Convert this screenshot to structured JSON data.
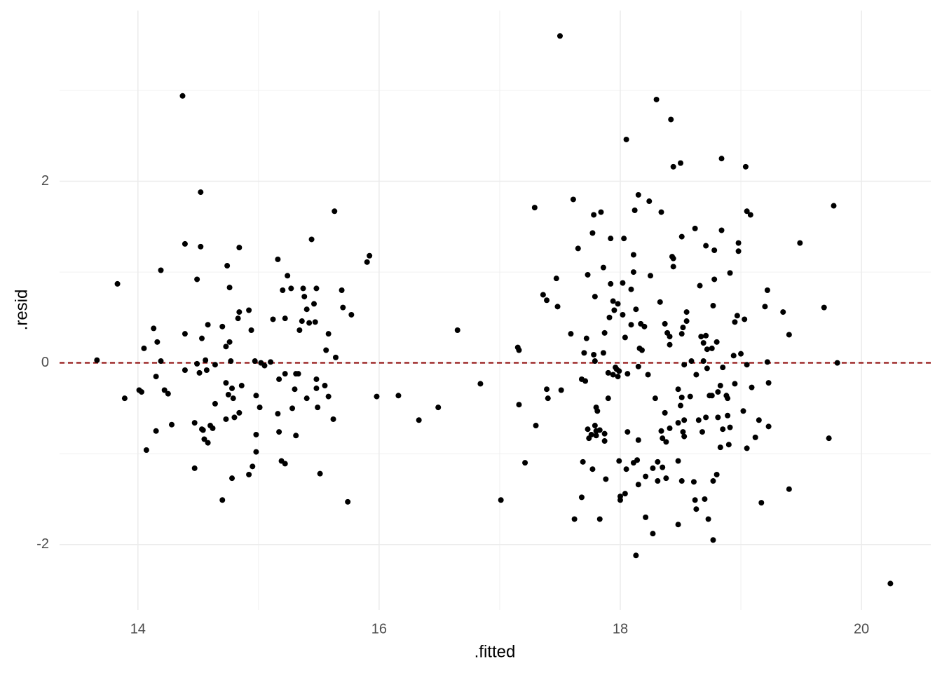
{
  "chart_data": {
    "type": "scatter",
    "x_label": ".fitted",
    "y_label": ".resid",
    "xlim": [
      13.35,
      20.575
    ],
    "ylim": [
      -2.72,
      3.88
    ],
    "xticks": [
      14,
      16,
      18,
      20
    ],
    "yticks": [
      -2,
      0,
      2
    ],
    "grid": true,
    "minor_grid": true,
    "hline": {
      "value": 0,
      "color": "#8b0000",
      "dash": true
    },
    "series": [
      {
        "color": "#000000",
        "x": [
          13.66,
          13.83,
          13.89,
          14.01,
          14.03,
          14.05,
          14.07,
          14.13,
          14.15,
          14.15,
          14.16,
          14.19,
          14.19,
          14.22,
          14.25,
          14.28,
          14.37,
          14.39,
          14.39,
          14.39,
          14.47,
          14.47,
          14.49,
          14.49,
          14.51,
          14.52,
          14.52,
          14.53,
          14.53,
          14.54,
          14.55,
          14.56,
          14.57,
          14.58,
          14.58,
          14.6,
          14.62,
          14.64,
          14.64,
          14.7,
          14.7,
          14.73,
          14.73,
          14.73,
          14.74,
          14.75,
          14.76,
          14.76,
          14.77,
          14.78,
          14.78,
          14.79,
          14.8,
          14.83,
          14.84,
          14.84,
          14.84,
          14.86,
          14.92,
          14.92,
          14.94,
          14.95,
          14.97,
          14.98,
          14.98,
          14.98,
          15.01,
          15.02,
          15.05,
          15.1,
          15.12,
          15.16,
          15.16,
          15.17,
          15.17,
          15.19,
          15.2,
          15.22,
          15.22,
          15.22,
          15.24,
          15.27,
          15.28,
          15.3,
          15.31,
          15.31,
          15.33,
          15.34,
          15.36,
          15.37,
          15.38,
          15.4,
          15.4,
          15.42,
          15.44,
          15.46,
          15.47,
          15.48,
          15.48,
          15.48,
          15.49,
          15.51,
          15.55,
          15.56,
          15.58,
          15.58,
          15.62,
          15.63,
          15.64,
          15.69,
          15.7,
          15.74,
          15.77,
          15.9,
          15.92,
          15.98,
          16.16,
          16.33,
          16.49,
          16.65,
          16.84,
          17.01,
          17.15,
          17.16,
          17.16,
          17.21,
          17.29,
          17.3,
          17.36,
          17.39,
          17.39,
          17.4,
          17.47,
          17.48,
          17.5,
          17.51,
          17.59,
          17.61,
          17.62,
          17.65,
          17.68,
          17.68,
          17.69,
          17.7,
          17.71,
          17.72,
          17.73,
          17.73,
          17.74,
          17.76,
          17.77,
          17.77,
          17.78,
          17.78,
          17.79,
          17.79,
          17.79,
          17.8,
          17.8,
          17.8,
          17.81,
          17.83,
          17.83,
          17.84,
          17.86,
          17.86,
          17.87,
          17.87,
          17.87,
          17.88,
          17.9,
          17.9,
          17.91,
          17.92,
          17.92,
          17.94,
          17.94,
          17.95,
          17.96,
          17.97,
          17.98,
          17.98,
          17.99,
          17.99,
          18.0,
          18.0,
          18.02,
          18.02,
          18.03,
          18.04,
          18.04,
          18.05,
          18.05,
          18.06,
          18.06,
          18.09,
          18.09,
          18.11,
          18.11,
          18.11,
          18.12,
          18.13,
          18.13,
          18.14,
          18.15,
          18.15,
          18.15,
          18.15,
          18.16,
          18.17,
          18.18,
          18.2,
          18.21,
          18.21,
          18.23,
          18.24,
          18.25,
          18.27,
          18.27,
          18.29,
          18.3,
          18.31,
          18.31,
          18.33,
          18.34,
          18.34,
          18.35,
          18.35,
          18.37,
          18.37,
          18.38,
          18.38,
          18.39,
          18.41,
          18.41,
          18.41,
          18.42,
          18.43,
          18.44,
          18.44,
          18.44,
          18.48,
          18.48,
          18.48,
          18.48,
          18.5,
          18.5,
          18.51,
          18.51,
          18.51,
          18.51,
          18.52,
          18.53,
          18.52,
          18.53,
          18.53,
          18.55,
          18.55,
          18.58,
          18.59,
          18.61,
          18.62,
          18.62,
          18.63,
          18.63,
          18.65,
          18.66,
          18.67,
          18.68,
          18.69,
          18.69,
          18.7,
          18.71,
          18.71,
          18.71,
          18.72,
          18.72,
          18.73,
          18.74,
          18.76,
          18.76,
          18.77,
          18.77,
          18.77,
          18.78,
          18.78,
          18.8,
          18.8,
          18.81,
          18.81,
          18.83,
          18.83,
          18.84,
          18.84,
          18.85,
          18.85,
          18.88,
          18.89,
          18.89,
          18.9,
          18.91,
          18.91,
          18.94,
          18.95,
          18.95,
          18.97,
          18.98,
          18.98,
          19.0,
          19.02,
          19.03,
          19.04,
          19.05,
          19.05,
          19.05,
          19.08,
          19.09,
          19.12,
          19.15,
          19.17,
          19.2,
          19.22,
          19.22,
          19.23,
          19.23,
          19.35,
          19.4,
          19.4,
          19.49,
          19.69,
          19.73,
          19.77,
          19.8,
          20.24
        ],
        "values": [
          0.03,
          0.87,
          -0.39,
          -0.3,
          -0.32,
          0.16,
          -0.96,
          0.38,
          -0.15,
          -0.75,
          0.23,
          1.02,
          0.02,
          -0.3,
          -0.34,
          -0.68,
          2.94,
          1.31,
          0.32,
          -0.08,
          -1.16,
          -0.66,
          0.92,
          -0.01,
          -0.11,
          1.88,
          1.28,
          0.27,
          -0.73,
          -0.74,
          -0.84,
          0.03,
          -0.08,
          -0.88,
          0.42,
          -0.69,
          -0.72,
          -0.02,
          -0.45,
          0.4,
          -1.51,
          0.18,
          -0.22,
          -0.62,
          1.07,
          -0.35,
          0.23,
          0.83,
          0.02,
          -0.28,
          -1.27,
          -0.39,
          -0.6,
          0.49,
          1.27,
          -0.55,
          0.56,
          -0.25,
          0.58,
          -1.23,
          0.36,
          -1.14,
          0.02,
          -0.36,
          -0.79,
          -0.98,
          -0.49,
          0.0,
          -0.03,
          0.01,
          0.48,
          1.14,
          -0.56,
          -0.18,
          -0.76,
          -1.08,
          0.8,
          0.49,
          -0.12,
          -1.11,
          0.96,
          0.82,
          -0.5,
          -0.29,
          -0.8,
          -0.12,
          -0.12,
          0.36,
          0.46,
          0.82,
          0.73,
          0.59,
          -0.39,
          0.44,
          1.36,
          0.65,
          0.45,
          -0.18,
          0.82,
          -0.28,
          -0.49,
          -1.22,
          -0.25,
          0.14,
          0.32,
          -0.37,
          -0.62,
          1.67,
          0.06,
          0.8,
          0.61,
          -1.53,
          0.53,
          1.11,
          1.18,
          -0.37,
          -0.36,
          -0.63,
          -0.49,
          0.36,
          -0.23,
          -1.51,
          0.17,
          0.14,
          -0.46,
          -1.1,
          1.71,
          -0.69,
          0.75,
          0.69,
          -0.29,
          -0.39,
          0.93,
          0.62,
          3.6,
          -0.3,
          0.32,
          1.8,
          -1.72,
          1.26,
          -1.48,
          -0.18,
          -1.09,
          0.11,
          -0.2,
          0.27,
          0.97,
          -0.73,
          -0.83,
          -0.79,
          1.43,
          -1.17,
          1.63,
          0.09,
          -0.69,
          0.73,
          0.02,
          -0.49,
          -0.75,
          -0.8,
          -0.53,
          -1.72,
          -0.74,
          1.66,
          1.05,
          0.11,
          -0.78,
          -0.86,
          0.33,
          -1.28,
          -0.39,
          -0.11,
          0.5,
          0.87,
          1.37,
          -0.13,
          0.68,
          0.58,
          -0.05,
          -0.07,
          0.65,
          -0.15,
          -0.09,
          -1.08,
          -1.47,
          -1.51,
          0.88,
          0.53,
          1.37,
          -1.44,
          0.28,
          2.46,
          -1.17,
          -0.76,
          -0.12,
          0.42,
          0.81,
          -1.1,
          1.0,
          1.19,
          1.68,
          -2.12,
          0.59,
          -1.07,
          1.85,
          -0.04,
          -0.85,
          -1.34,
          0.16,
          0.43,
          0.14,
          0.4,
          -1.25,
          -1.7,
          -0.13,
          1.78,
          0.96,
          -1.16,
          -1.88,
          -0.39,
          2.9,
          -1.09,
          -1.3,
          0.67,
          1.66,
          -0.75,
          -0.83,
          -1.15,
          0.43,
          -0.55,
          -0.87,
          -1.27,
          0.33,
          -0.72,
          0.29,
          0.2,
          2.68,
          1.17,
          2.16,
          1.15,
          1.06,
          -0.66,
          -1.08,
          -1.78,
          -0.29,
          -0.47,
          2.2,
          1.39,
          0.32,
          -1.3,
          -0.38,
          -0.76,
          -0.02,
          0.39,
          -0.63,
          -0.81,
          0.56,
          0.46,
          -0.37,
          0.02,
          -1.31,
          1.48,
          -1.51,
          -1.61,
          -0.13,
          -0.63,
          0.85,
          0.29,
          -0.76,
          0.02,
          0.22,
          -1.5,
          1.29,
          0.3,
          -0.6,
          0.15,
          -0.06,
          -1.72,
          -0.36,
          -0.36,
          0.16,
          -1.95,
          0.63,
          -1.3,
          1.24,
          0.92,
          0.23,
          -1.23,
          -0.6,
          -0.32,
          -0.93,
          -0.25,
          1.46,
          2.25,
          -0.05,
          -0.73,
          -0.36,
          -0.58,
          -0.39,
          -0.9,
          0.99,
          -0.71,
          0.08,
          -0.23,
          0.45,
          0.52,
          1.32,
          1.23,
          0.1,
          -0.53,
          0.48,
          2.16,
          -0.94,
          1.67,
          -0.02,
          1.63,
          -0.27,
          -0.82,
          -0.63,
          -1.54,
          0.62,
          0.8,
          0.01,
          -0.22,
          -0.7,
          0.56,
          -1.39,
          0.31,
          1.32,
          0.61,
          -0.83,
          1.73,
          0.0,
          -2.43
        ]
      }
    ]
  }
}
